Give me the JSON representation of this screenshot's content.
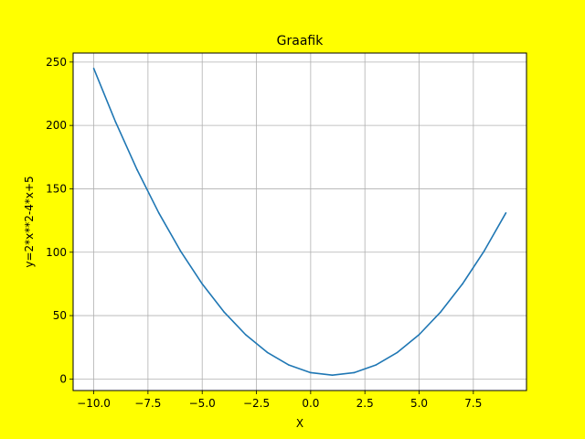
{
  "chart_data": {
    "type": "line",
    "title": "Graafik",
    "xlabel": "X",
    "ylabel": "y=2*x**2-4*x+5",
    "xlim": [
      -10.95,
      9.95
    ],
    "ylim": [
      -9.1,
      257.1
    ],
    "grid": true,
    "x_ticks": [
      -10.0,
      -7.5,
      -5.0,
      -2.5,
      0.0,
      2.5,
      5.0,
      7.5
    ],
    "x_tick_labels": [
      "−10.0",
      "−7.5",
      "−5.0",
      "−2.5",
      "0.0",
      "2.5",
      "5.0",
      "7.5"
    ],
    "y_ticks": [
      0,
      50,
      100,
      150,
      200,
      250
    ],
    "y_tick_labels": [
      "0",
      "50",
      "100",
      "150",
      "200",
      "250"
    ],
    "series": [
      {
        "color": "#1f77b4",
        "x": [
          -10,
          -9,
          -8,
          -7,
          -6,
          -5,
          -4,
          -3,
          -2,
          -1,
          0,
          1,
          2,
          3,
          4,
          5,
          6,
          7,
          8,
          9
        ],
        "y": [
          245,
          203,
          165,
          131,
          101,
          75,
          53,
          35,
          21,
          11,
          5,
          3,
          5,
          11,
          21,
          35,
          53,
          75,
          101,
          131
        ]
      }
    ],
    "colors": {
      "background": "#ffff00",
      "plot_area": "#ffffff",
      "grid": "#b0b0b0",
      "line": "#1f77b4"
    }
  }
}
